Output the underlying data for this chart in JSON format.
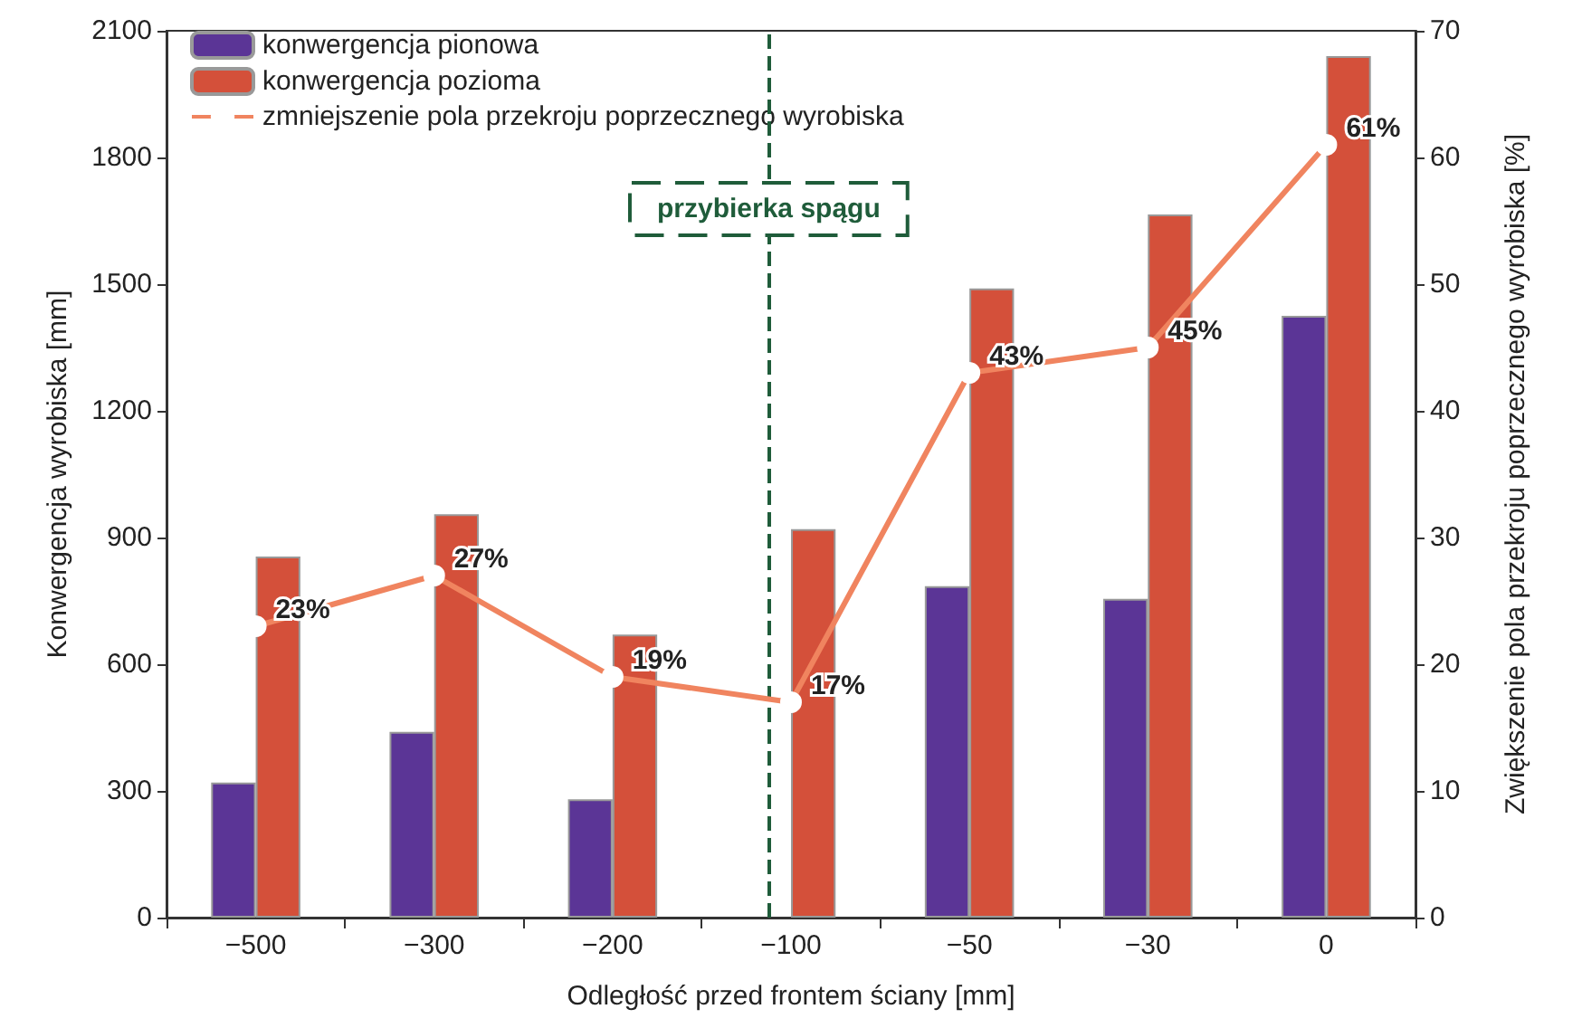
{
  "chart_data": {
    "type": "bar",
    "xlabel": "Odległość przed frontem ściany [mm]",
    "ylabel": "Konwergencja wyrobiska [mm]",
    "y2label": "Zwiększenie pola przekroju poprzecznego wyrobiska [%]",
    "categories": [
      "−500",
      "−300",
      "−200",
      "−100",
      "−50",
      "−30",
      "0"
    ],
    "series": [
      {
        "name": "konwergencja pionowa",
        "color": "#5b3596",
        "values": [
          320,
          440,
          280,
          null,
          785,
          755,
          1425
        ]
      },
      {
        "name": "konwergencja pozioma",
        "color": "#d4503a",
        "values": [
          855,
          955,
          670,
          920,
          1490,
          1665,
          2040
        ]
      },
      {
        "name": "zmniejszenie pola przekroju poprzecznego wyrobiska",
        "type": "line",
        "axis": "y2",
        "color": "#f0845f",
        "marker": "circle",
        "values": [
          23,
          27,
          19,
          17,
          43,
          45,
          61
        ],
        "value_labels": [
          "23%",
          "27%",
          "19%",
          "17%",
          "43%",
          "45%",
          "61%"
        ]
      }
    ],
    "ylim": [
      0,
      2100
    ],
    "yticks": [
      0,
      300,
      600,
      900,
      1200,
      1500,
      1800,
      2100
    ],
    "y2lim": [
      0,
      70
    ],
    "y2ticks": [
      0,
      10,
      20,
      30,
      40,
      50,
      60,
      70
    ],
    "ref_lines": [
      {
        "axis": "x",
        "value": "−100",
        "label": "przybierka spągu",
        "color": "#1f5c3a",
        "line_style": "dashed"
      }
    ],
    "grid": false,
    "legend": "top left"
  }
}
